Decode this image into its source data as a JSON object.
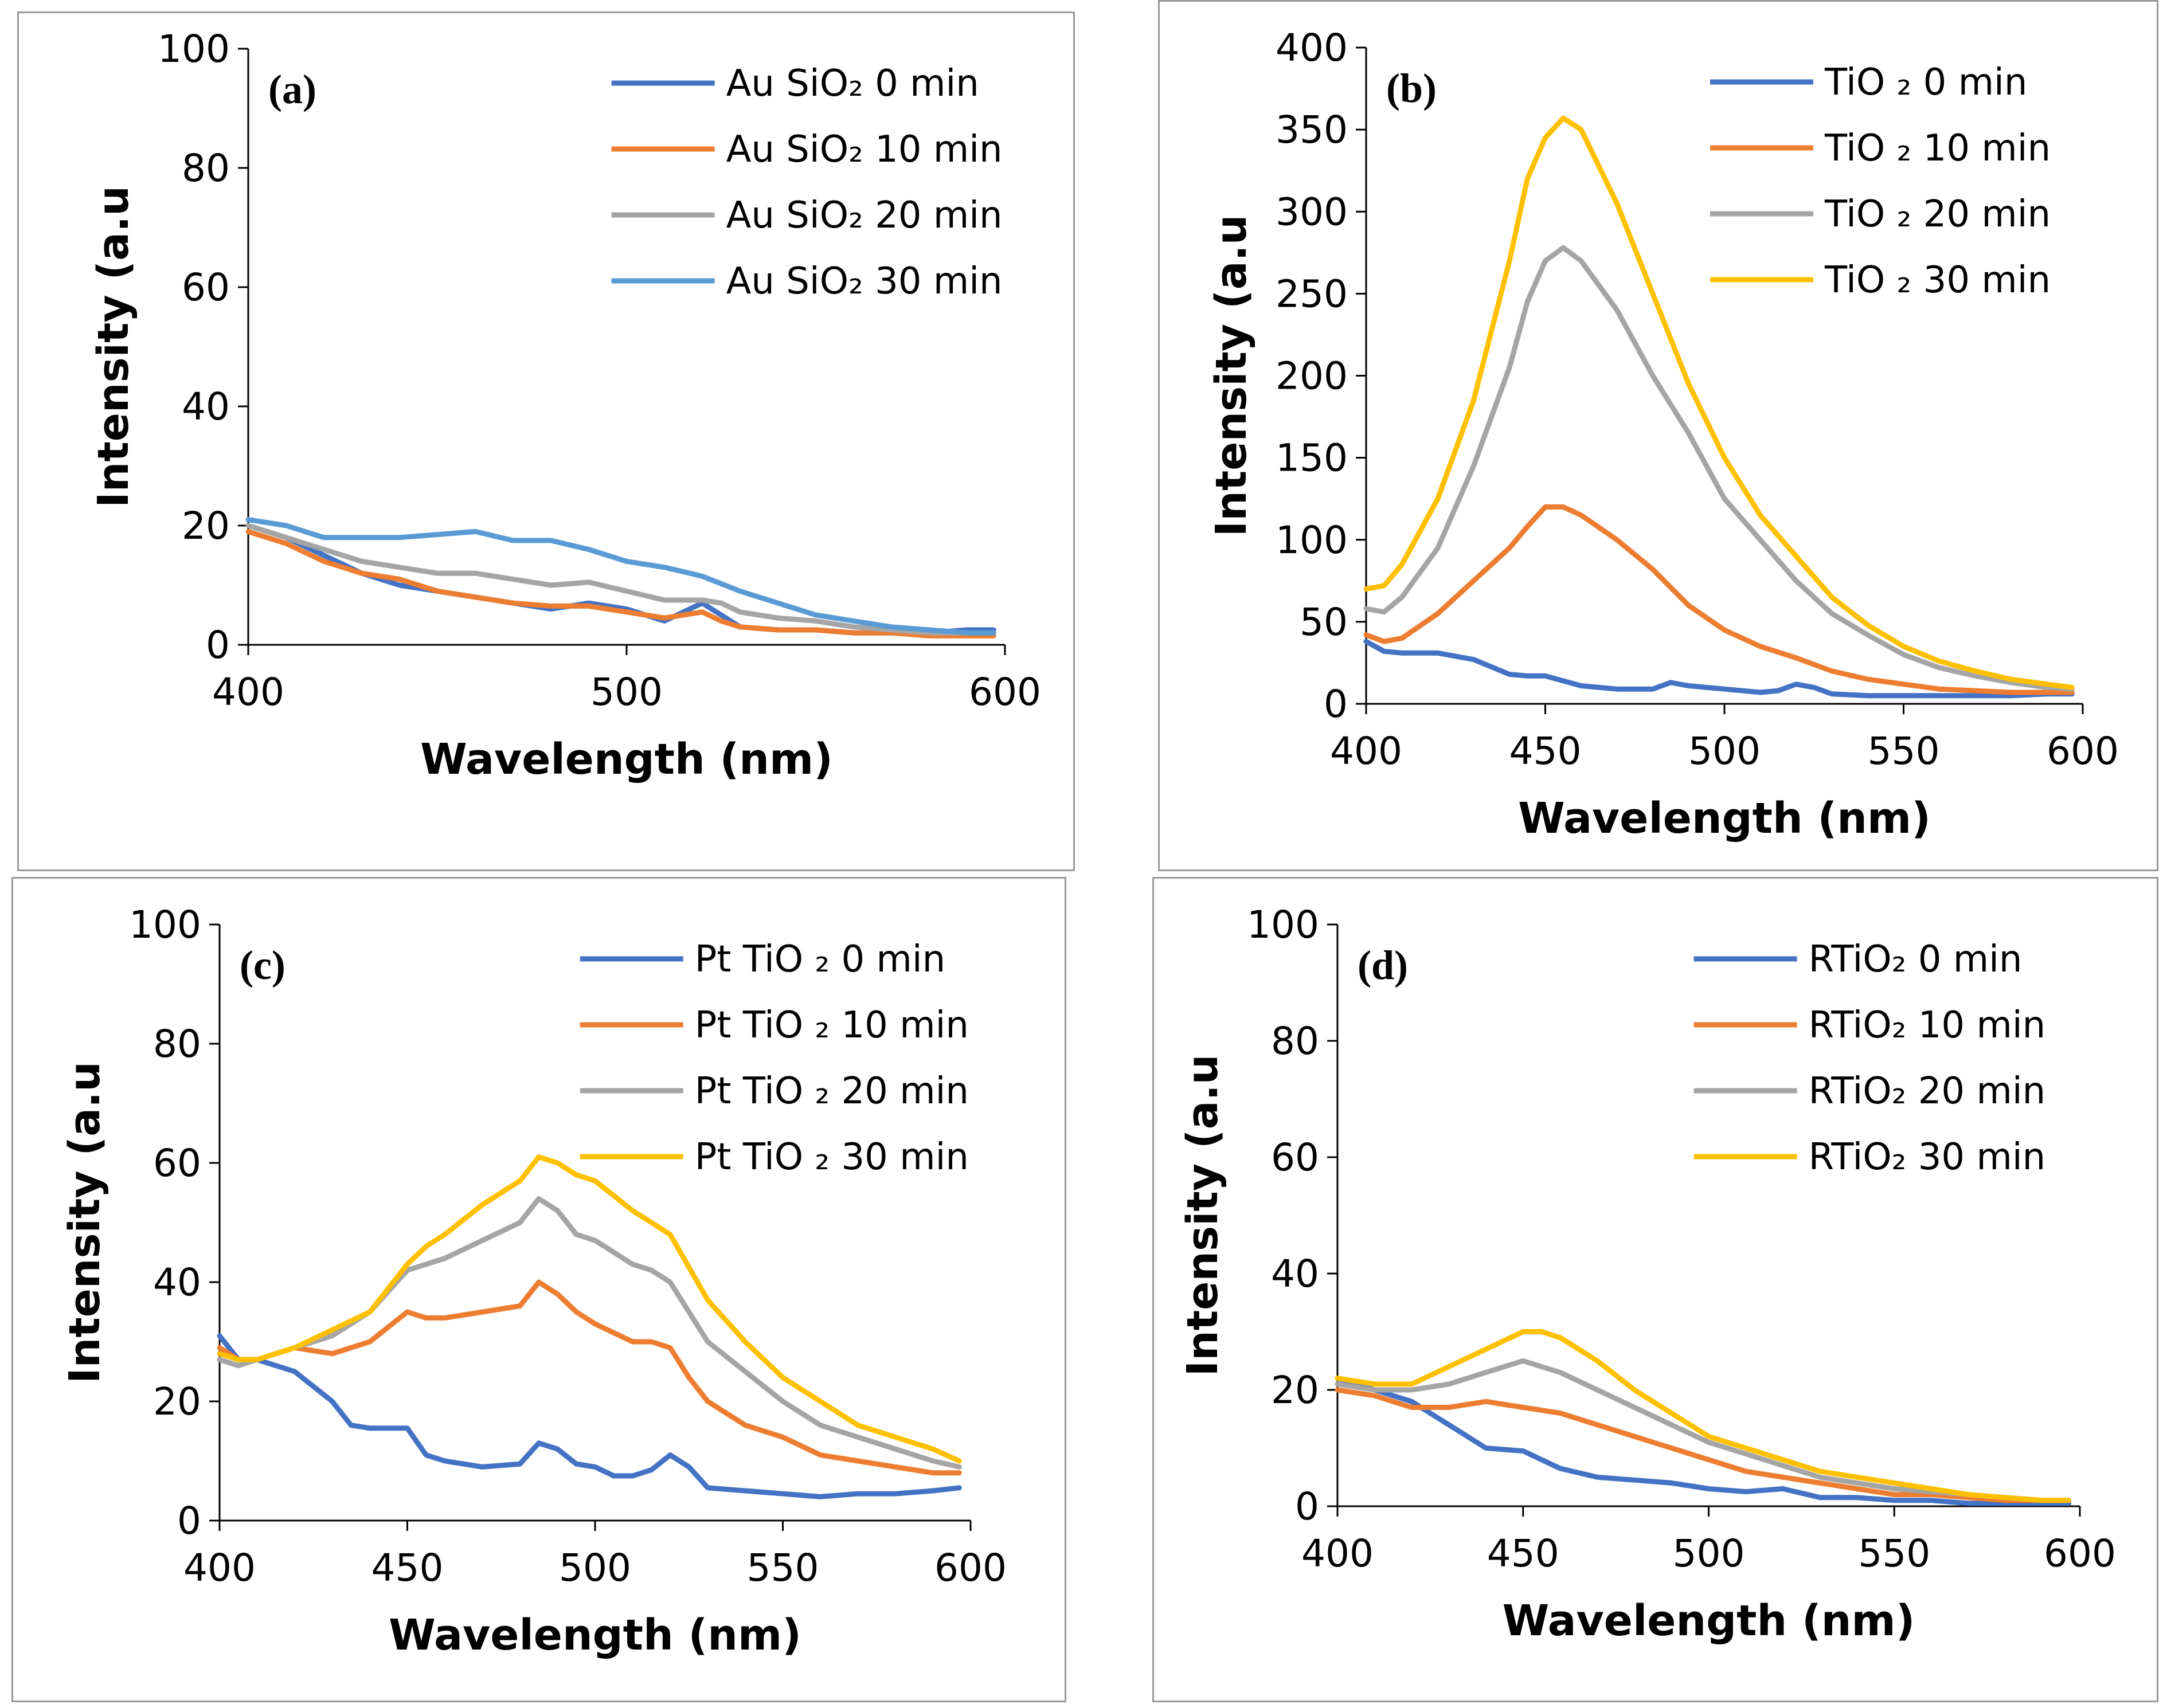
{
  "colors": {
    "s0": "#4472C4",
    "s1": "#ED7D31",
    "s2": "#A5A5A5",
    "s3_gold": "#FFC000",
    "s3_lightblue": "#5B9BD5"
  },
  "chart_data": [
    {
      "id": "a",
      "type": "line",
      "panel_label": "(a)",
      "xlabel": "Wavelength (nm)",
      "ylabel": "Intensity (a.u",
      "xlim": [
        400,
        600
      ],
      "ylim": [
        0,
        100
      ],
      "xticks": [
        "400",
        "500",
        "600"
      ],
      "yticks": [
        "0",
        "20",
        "40",
        "60",
        "80",
        "100"
      ],
      "legend_position": "top-right",
      "series": [
        {
          "name": "Au SiO₂ 0 min",
          "color": "#4472C4",
          "x": [
            400,
            410,
            420,
            430,
            440,
            450,
            460,
            470,
            480,
            490,
            500,
            510,
            520,
            525,
            530,
            540,
            550,
            560,
            570,
            580,
            590,
            597
          ],
          "y": [
            20,
            18,
            15,
            12,
            10,
            9,
            8,
            7,
            6,
            7,
            6,
            4,
            7,
            5,
            3,
            2.5,
            2.5,
            2,
            2,
            2,
            2.5,
            2.5
          ]
        },
        {
          "name": "Au SiO₂ 10 min",
          "color": "#ED7D31",
          "x": [
            400,
            410,
            420,
            430,
            440,
            450,
            460,
            470,
            480,
            490,
            500,
            510,
            520,
            525,
            530,
            540,
            550,
            560,
            570,
            580,
            590,
            597
          ],
          "y": [
            19,
            17,
            14,
            12,
            11,
            9,
            8,
            7,
            6.5,
            6.5,
            5.5,
            4.5,
            5.5,
            4,
            3,
            2.5,
            2.5,
            2,
            2,
            1.5,
            1.5,
            1.5
          ]
        },
        {
          "name": "Au SiO₂ 20 min",
          "color": "#A5A5A5",
          "x": [
            400,
            410,
            420,
            430,
            440,
            450,
            460,
            470,
            480,
            490,
            500,
            510,
            520,
            525,
            530,
            540,
            550,
            560,
            570,
            580,
            590,
            597
          ],
          "y": [
            20,
            18,
            16,
            14,
            13,
            12,
            12,
            11,
            10,
            10.5,
            9,
            7.5,
            7.5,
            7,
            5.5,
            4.5,
            4,
            3,
            2.5,
            2,
            2,
            2
          ]
        },
        {
          "name": "Au SiO₂ 30 min",
          "color": "#5B9BD5",
          "x": [
            400,
            410,
            420,
            430,
            440,
            450,
            460,
            470,
            480,
            490,
            500,
            510,
            520,
            530,
            540,
            550,
            560,
            570,
            580,
            590,
            597
          ],
          "y": [
            21,
            20,
            18,
            18,
            18,
            18.5,
            19,
            17.5,
            17.5,
            16,
            14,
            13,
            11.5,
            9,
            7,
            5,
            4,
            3,
            2.5,
            2,
            2
          ]
        }
      ]
    },
    {
      "id": "b",
      "type": "line",
      "panel_label": "(b)",
      "xlabel": "Wavelength (nm)",
      "ylabel": "Intensity (a.u",
      "xlim": [
        400,
        600
      ],
      "ylim": [
        0,
        400
      ],
      "xticks": [
        "400",
        "450",
        "500",
        "550",
        "600"
      ],
      "yticks": [
        "0",
        "50",
        "100",
        "150",
        "200",
        "250",
        "300",
        "350",
        "400"
      ],
      "legend_position": "top-right",
      "series": [
        {
          "name": "TiO ₂ 0 min",
          "color": "#4472C4",
          "x": [
            400,
            405,
            410,
            420,
            430,
            440,
            445,
            450,
            460,
            470,
            480,
            485,
            490,
            500,
            510,
            515,
            520,
            525,
            530,
            540,
            550,
            560,
            570,
            580,
            590,
            597
          ],
          "y": [
            38,
            32,
            31,
            31,
            27,
            18,
            17,
            17,
            11,
            9,
            9,
            13,
            11,
            9,
            7,
            8,
            12,
            10,
            6,
            5,
            5,
            5,
            5,
            5,
            6,
            6
          ]
        },
        {
          "name": "TiO ₂ 10 min",
          "color": "#ED7D31",
          "x": [
            400,
            405,
            410,
            420,
            430,
            440,
            445,
            450,
            455,
            460,
            470,
            480,
            490,
            500,
            510,
            520,
            530,
            540,
            550,
            560,
            570,
            580,
            590,
            597
          ],
          "y": [
            42,
            38,
            40,
            55,
            75,
            95,
            108,
            120,
            120,
            115,
            100,
            82,
            60,
            45,
            35,
            28,
            20,
            15,
            12,
            9,
            8,
            7,
            7,
            7
          ]
        },
        {
          "name": "TiO ₂ 20 min",
          "color": "#A5A5A5",
          "x": [
            400,
            405,
            410,
            420,
            430,
            440,
            445,
            450,
            455,
            460,
            470,
            480,
            490,
            500,
            510,
            520,
            530,
            540,
            550,
            560,
            570,
            580,
            590,
            597
          ],
          "y": [
            58,
            56,
            65,
            95,
            145,
            205,
            245,
            270,
            278,
            270,
            240,
            200,
            165,
            125,
            100,
            75,
            55,
            42,
            30,
            22,
            17,
            13,
            10,
            9
          ]
        },
        {
          "name": "TiO ₂ 30 min",
          "color": "#FFC000",
          "x": [
            400,
            405,
            410,
            420,
            430,
            440,
            445,
            450,
            455,
            460,
            470,
            480,
            490,
            500,
            510,
            520,
            530,
            540,
            550,
            560,
            570,
            580,
            590,
            597
          ],
          "y": [
            70,
            72,
            85,
            125,
            185,
            270,
            320,
            345,
            357,
            350,
            305,
            250,
            195,
            150,
            115,
            90,
            65,
            48,
            35,
            26,
            20,
            15,
            12,
            10
          ]
        }
      ]
    },
    {
      "id": "c",
      "type": "line",
      "panel_label": "(c)",
      "xlabel": "Wavelength (nm)",
      "ylabel": "Intensity (a.u",
      "xlim": [
        400,
        600
      ],
      "ylim": [
        0,
        100
      ],
      "xticks": [
        "400",
        "450",
        "500",
        "550",
        "600"
      ],
      "yticks": [
        "0",
        "20",
        "40",
        "60",
        "80",
        "100"
      ],
      "legend_position": "top-right",
      "series": [
        {
          "name": "Pt TiO ₂ 0 min",
          "color": "#4472C4",
          "x": [
            400,
            405,
            410,
            420,
            430,
            435,
            440,
            450,
            455,
            460,
            470,
            480,
            485,
            490,
            495,
            500,
            505,
            510,
            515,
            520,
            525,
            530,
            540,
            550,
            560,
            570,
            580,
            590,
            597
          ],
          "y": [
            31,
            27,
            27,
            25,
            20,
            16,
            15.5,
            15.5,
            11,
            10,
            9,
            9.5,
            13,
            12,
            9.5,
            9,
            7.5,
            7.5,
            8.5,
            11,
            9,
            5.5,
            5,
            4.5,
            4,
            4.5,
            4.5,
            5,
            5.5
          ]
        },
        {
          "name": "Pt TiO ₂ 10 min",
          "color": "#ED7D31",
          "x": [
            400,
            405,
            410,
            420,
            430,
            440,
            450,
            455,
            460,
            470,
            480,
            485,
            490,
            495,
            500,
            510,
            515,
            520,
            525,
            530,
            540,
            550,
            560,
            570,
            580,
            590,
            597
          ],
          "y": [
            29,
            27,
            27,
            29,
            28,
            30,
            35,
            34,
            34,
            35,
            36,
            40,
            38,
            35,
            33,
            30,
            30,
            29,
            24,
            20,
            16,
            14,
            11,
            10,
            9,
            8,
            8
          ]
        },
        {
          "name": "Pt TiO ₂ 20 min",
          "color": "#A5A5A5",
          "x": [
            400,
            405,
            410,
            420,
            430,
            440,
            450,
            455,
            460,
            470,
            480,
            485,
            490,
            495,
            500,
            510,
            515,
            520,
            530,
            540,
            550,
            560,
            570,
            580,
            590,
            597
          ],
          "y": [
            27,
            26,
            27,
            29,
            31,
            35,
            42,
            43,
            44,
            47,
            50,
            54,
            52,
            48,
            47,
            43,
            42,
            40,
            30,
            25,
            20,
            16,
            14,
            12,
            10,
            9
          ]
        },
        {
          "name": "Pt TiO ₂ 30 min",
          "color": "#FFC000",
          "x": [
            400,
            405,
            410,
            420,
            430,
            440,
            450,
            455,
            460,
            470,
            480,
            485,
            490,
            495,
            500,
            510,
            515,
            520,
            530,
            540,
            550,
            560,
            570,
            580,
            590,
            597
          ],
          "y": [
            28,
            27,
            27,
            29,
            32,
            35,
            43,
            46,
            48,
            53,
            57,
            61,
            60,
            58,
            57,
            52,
            50,
            48,
            37,
            30,
            24,
            20,
            16,
            14,
            12,
            10
          ]
        }
      ]
    },
    {
      "id": "d",
      "type": "line",
      "panel_label": "(d)",
      "xlabel": "Wavelength (nm)",
      "ylabel": "Intensity (a.u",
      "xlim": [
        400,
        600
      ],
      "ylim": [
        0,
        100
      ],
      "xticks": [
        "400",
        "450",
        "500",
        "550",
        "600"
      ],
      "yticks": [
        "0",
        "20",
        "40",
        "60",
        "80",
        "100"
      ],
      "legend_position": "top-right",
      "series": [
        {
          "name": "RTiO₂ 0 min",
          "color": "#4472C4",
          "x": [
            400,
            410,
            420,
            430,
            440,
            450,
            455,
            460,
            470,
            480,
            490,
            500,
            510,
            520,
            530,
            540,
            550,
            560,
            570,
            580,
            590,
            597
          ],
          "y": [
            22,
            20,
            18,
            14,
            10,
            9.5,
            8,
            6.5,
            5,
            4.5,
            4,
            3,
            2.5,
            3,
            1.5,
            1.5,
            1,
            1,
            0.5,
            0.5,
            0.5,
            0.5
          ]
        },
        {
          "name": "RTiO₂ 10 min",
          "color": "#ED7D31",
          "x": [
            400,
            410,
            420,
            430,
            440,
            450,
            460,
            470,
            480,
            490,
            500,
            510,
            520,
            530,
            540,
            550,
            560,
            570,
            580,
            590,
            597
          ],
          "y": [
            20,
            19,
            17,
            17,
            18,
            17,
            16,
            14,
            12,
            10,
            8,
            6,
            5,
            4,
            3,
            2,
            2,
            1.5,
            1,
            1,
            1
          ]
        },
        {
          "name": "RTiO₂ 20 min",
          "color": "#A5A5A5",
          "x": [
            400,
            410,
            420,
            430,
            440,
            450,
            455,
            460,
            470,
            480,
            490,
            500,
            510,
            520,
            530,
            540,
            550,
            560,
            570,
            580,
            590,
            597
          ],
          "y": [
            21,
            20,
            20,
            21,
            23,
            25,
            24,
            23,
            20,
            17,
            14,
            11,
            9,
            7,
            5,
            4,
            3,
            2.5,
            2,
            1.5,
            1,
            1
          ]
        },
        {
          "name": "RTiO₂ 30 min",
          "color": "#FFC000",
          "x": [
            400,
            410,
            420,
            430,
            440,
            450,
            455,
            460,
            470,
            480,
            490,
            500,
            510,
            520,
            530,
            540,
            550,
            560,
            570,
            580,
            590,
            597
          ],
          "y": [
            22,
            21,
            21,
            24,
            27,
            30,
            30,
            29,
            25,
            20,
            16,
            12,
            10,
            8,
            6,
            5,
            4,
            3,
            2,
            1.5,
            1,
            1
          ]
        }
      ]
    }
  ]
}
